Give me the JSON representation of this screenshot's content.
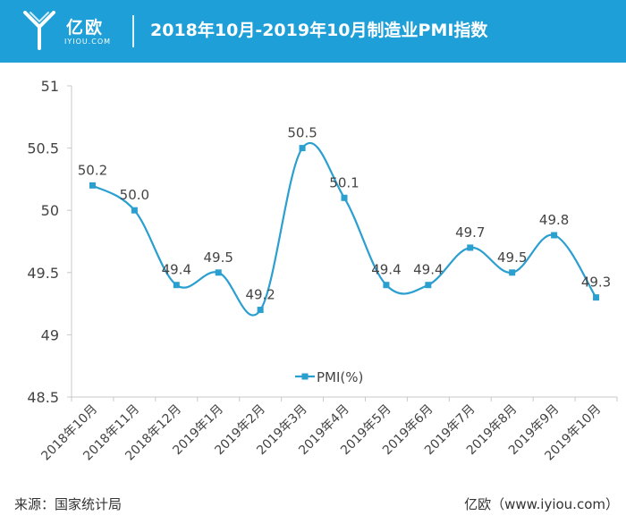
{
  "header": {
    "logo_cn": "亿欧",
    "logo_en": "IYIOU.COM",
    "title": "2018年10月-2019年10月制造业PMI指数"
  },
  "footer": {
    "source": "来源：国家统计局",
    "credit": "亿欧（www.iyiou.com）"
  },
  "colors": {
    "header_bg": "#1e9fd8",
    "series": "#2a9fd0",
    "axis": "#c8c8c8",
    "text": "#444444"
  },
  "chart_data": {
    "type": "line",
    "categories": [
      "2018年10月",
      "2018年11月",
      "2018年12月",
      "2019年1月",
      "2019年2月",
      "2019年3月",
      "2019年4月",
      "2019年5月",
      "2019年6月",
      "2019年7月",
      "2019年8月",
      "2019年9月",
      "2019年10月"
    ],
    "series": [
      {
        "name": "PMI(%)",
        "values": [
          50.2,
          50.0,
          49.4,
          49.5,
          49.2,
          50.5,
          50.1,
          49.4,
          49.4,
          49.7,
          49.5,
          49.8,
          49.3
        ],
        "labels": [
          "50.2",
          "50.0",
          "49.4",
          "49.5",
          "49.2",
          "50.5",
          "50.1",
          "49.4",
          "49.4",
          "49.7",
          "49.5",
          "49.8",
          "49.3"
        ]
      }
    ],
    "yticks": [
      "48.5",
      "49",
      "49.5",
      "50",
      "50.5",
      "51"
    ],
    "ylim": [
      48.5,
      51
    ],
    "legend_position": "bottom-center",
    "marker": "square",
    "smooth": true
  }
}
